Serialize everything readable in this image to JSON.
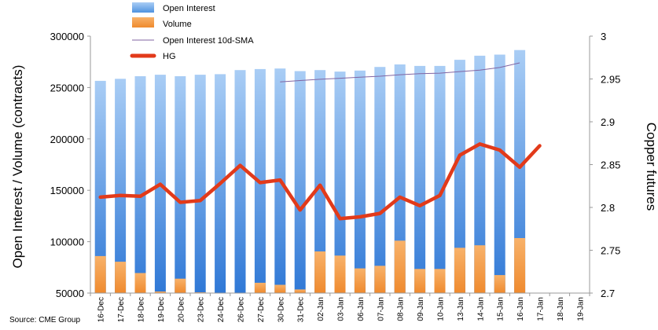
{
  "chart_data": {
    "type": "bar",
    "categories": [
      "16-Dec",
      "17-Dec",
      "18-Dec",
      "19-Dec",
      "20-Dec",
      "23-Dec",
      "24-Dec",
      "26-Dec",
      "27-Dec",
      "30-Dec",
      "31-Dec",
      "02-Jan",
      "03-Jan",
      "06-Jan",
      "07-Jan",
      "08-Jan",
      "09-Jan",
      "10-Jan",
      "13-Jan",
      "14-Jan",
      "15-Jan",
      "16-Jan",
      "17-Jan",
      "18-Jan",
      "19-Jan"
    ],
    "series": [
      {
        "name": "Open Interest",
        "type": "bar",
        "axis": "left",
        "color": "#4f93e0",
        "values": [
          256500,
          258500,
          261000,
          262500,
          261000,
          262500,
          263000,
          267000,
          268000,
          268500,
          266000,
          267000,
          265500,
          266500,
          270000,
          272500,
          271000,
          271000,
          277000,
          281000,
          282000,
          286500,
          null,
          null,
          null
        ]
      },
      {
        "name": "Volume",
        "type": "bar",
        "axis": "left",
        "color": "#f59a45",
        "values": [
          86000,
          80500,
          69500,
          51500,
          64000,
          50800,
          50000,
          50000,
          60000,
          58000,
          53500,
          90500,
          86500,
          74000,
          76500,
          101000,
          73500,
          73500,
          94000,
          96500,
          67500,
          103500,
          null,
          null,
          null
        ]
      },
      {
        "name": "Open Interest 10d-SMA",
        "type": "line",
        "axis": "left",
        "color": "#8064a2",
        "values": [
          null,
          null,
          null,
          null,
          null,
          null,
          null,
          null,
          null,
          255500,
          256800,
          258000,
          259000,
          260000,
          261000,
          262500,
          263500,
          264000,
          265500,
          267000,
          269500,
          274000,
          null,
          null,
          null
        ]
      },
      {
        "name": "HG",
        "type": "line",
        "axis": "right",
        "color": "#e23a1a",
        "values": [
          2.812,
          2.814,
          2.813,
          2.827,
          2.806,
          2.808,
          2.828,
          2.849,
          2.829,
          2.832,
          2.797,
          2.826,
          2.787,
          2.789,
          2.793,
          2.812,
          2.802,
          2.814,
          2.861,
          2.874,
          2.867,
          2.847,
          2.872,
          null,
          null
        ]
      }
    ],
    "title": "",
    "ylabel": "Open Interest / Volume (contracts)",
    "y2label": "Copper futures",
    "ylim": [
      50000,
      300000
    ],
    "y2lim": [
      2.7,
      3.0
    ],
    "yticks": [
      "50000",
      "100000",
      "150000",
      "200000",
      "250000",
      "300000"
    ],
    "y2ticks": [
      "2.7",
      "2.75",
      "2.8",
      "2.85",
      "2.9",
      "2.95",
      "3"
    ],
    "grid": false,
    "legend_position": "top"
  },
  "source": "Source: CME Group"
}
